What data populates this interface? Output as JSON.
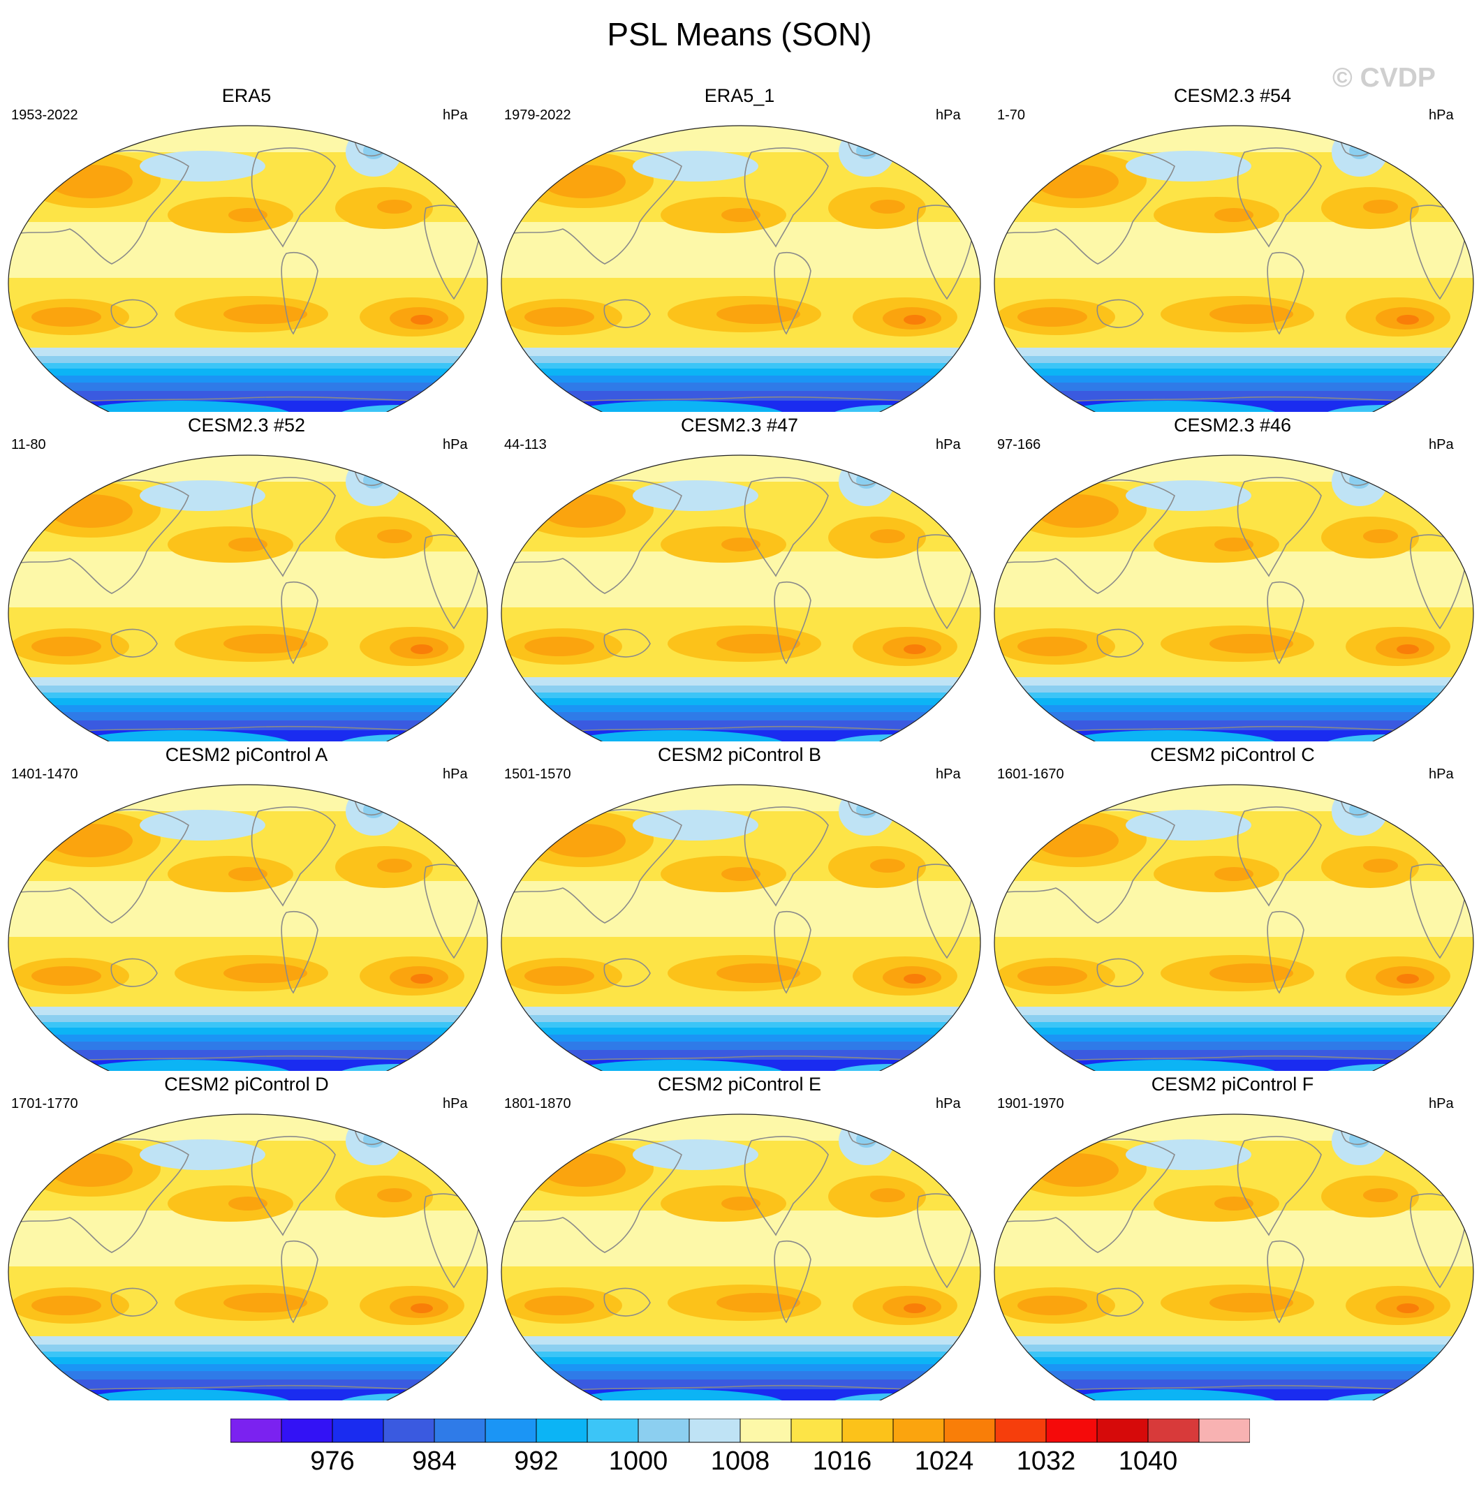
{
  "figure": {
    "title": "PSL Means (SON)",
    "watermark": "© CVDP"
  },
  "panels": [
    {
      "title": "ERA5",
      "period": "1953-2022",
      "units": "hPa"
    },
    {
      "title": "ERA5_1",
      "period": "1979-2022",
      "units": "hPa"
    },
    {
      "title": "CESM2.3 #54",
      "period": "1-70",
      "units": "hPa"
    },
    {
      "title": "CESM2.3 #52",
      "period": "11-80",
      "units": "hPa"
    },
    {
      "title": "CESM2.3 #47",
      "period": "44-113",
      "units": "hPa"
    },
    {
      "title": "CESM2.3 #46",
      "period": "97-166",
      "units": "hPa"
    },
    {
      "title": "CESM2 piControl A",
      "period": "1401-1470",
      "units": "hPa"
    },
    {
      "title": "CESM2 piControl B",
      "period": "1501-1570",
      "units": "hPa"
    },
    {
      "title": "CESM2 piControl C",
      "period": "1601-1670",
      "units": "hPa"
    },
    {
      "title": "CESM2 piControl D",
      "period": "1701-1770",
      "units": "hPa"
    },
    {
      "title": "CESM2 piControl E",
      "period": "1801-1870",
      "units": "hPa"
    },
    {
      "title": "CESM2 piControl F",
      "period": "1901-1970",
      "units": "hPa"
    }
  ],
  "colorbar": {
    "colors": [
      "#7b22f0",
      "#3312f5",
      "#1a2cf0",
      "#3a5ae0",
      "#2f7be8",
      "#1b95f5",
      "#0cb4f5",
      "#3cc5f7",
      "#8ccff0",
      "#bfe3f5",
      "#fdf8a8",
      "#fde447",
      "#fcc21a",
      "#fba40e",
      "#f97e08",
      "#f63e0c",
      "#f50a0a",
      "#d60a0a",
      "#d83a3a",
      "#f8b2b2"
    ],
    "tick_labels": [
      "976",
      "984",
      "992",
      "1000",
      "1008",
      "1016",
      "1024",
      "1032",
      "1040"
    ]
  }
}
